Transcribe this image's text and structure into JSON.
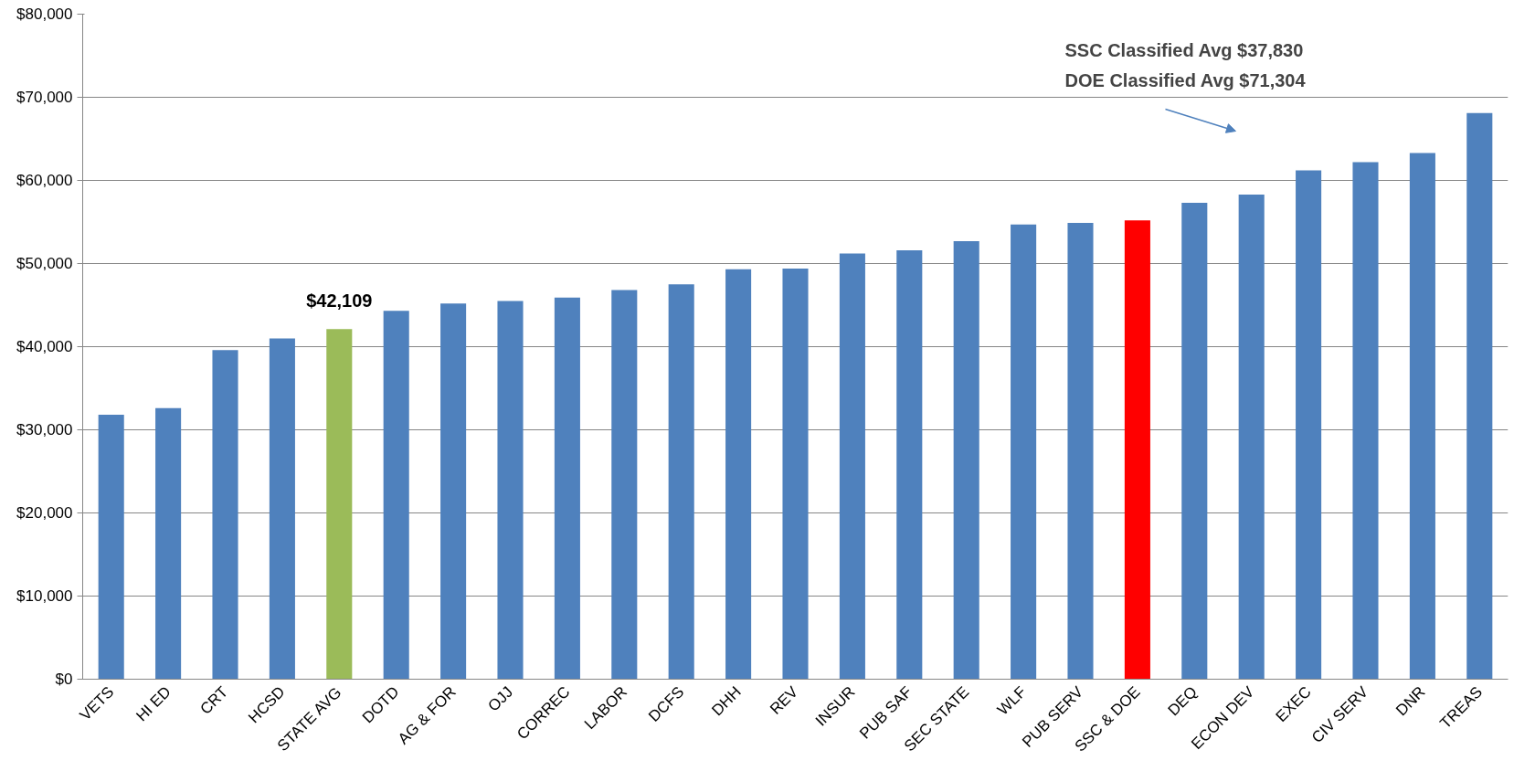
{
  "chart_data": {
    "type": "bar",
    "categories": [
      "VETS",
      "HI ED",
      "CRT",
      "HCSD",
      "STATE AVG",
      "DOTD",
      "AG & FOR",
      "OJJ",
      "CORREC",
      "LABOR",
      "DCFS",
      "DHH",
      "REV",
      "INSUR",
      "PUB SAF",
      "SEC STATE",
      "WLF",
      "PUB SERV",
      "SSC & DOE",
      "DEQ",
      "ECON DEV",
      "EXEC",
      "CIV SERV",
      "DNR",
      "TREAS"
    ],
    "values": [
      31800,
      32600,
      39600,
      41000,
      42109,
      44300,
      45200,
      45500,
      45900,
      46800,
      47500,
      49300,
      49400,
      51200,
      51600,
      52700,
      54700,
      54900,
      55200,
      57300,
      58300,
      61200,
      62200,
      63300,
      68100
    ],
    "colors": [
      "#4f81bd",
      "#4f81bd",
      "#4f81bd",
      "#4f81bd",
      "#9bbb59",
      "#4f81bd",
      "#4f81bd",
      "#4f81bd",
      "#4f81bd",
      "#4f81bd",
      "#4f81bd",
      "#4f81bd",
      "#4f81bd",
      "#4f81bd",
      "#4f81bd",
      "#4f81bd",
      "#4f81bd",
      "#4f81bd",
      "#ff0000",
      "#4f81bd",
      "#4f81bd",
      "#4f81bd",
      "#4f81bd",
      "#4f81bd",
      "#4f81bd"
    ],
    "value_labels": [
      null,
      null,
      null,
      null,
      "$42,109",
      null,
      null,
      null,
      null,
      null,
      null,
      null,
      null,
      null,
      null,
      null,
      null,
      null,
      null,
      null,
      null,
      null,
      null,
      null,
      null
    ],
    "annotations": [
      "SSC Classified Avg $37,830\nDOE Classified Avg $71,304"
    ],
    "ylim": [
      0,
      80000
    ],
    "yticks": [
      {
        "value": 0,
        "label": "$0"
      },
      {
        "value": 10000,
        "label": "$10,000"
      },
      {
        "value": 20000,
        "label": "$20,000"
      },
      {
        "value": 30000,
        "label": "$30,000"
      },
      {
        "value": 40000,
        "label": "$40,000"
      },
      {
        "value": 50000,
        "label": "$50,000"
      },
      {
        "value": 60000,
        "label": "$60,000"
      },
      {
        "value": 70000,
        "label": "$70,000"
      },
      {
        "value": 80000,
        "label": "$80,000"
      }
    ],
    "grid": "y"
  }
}
